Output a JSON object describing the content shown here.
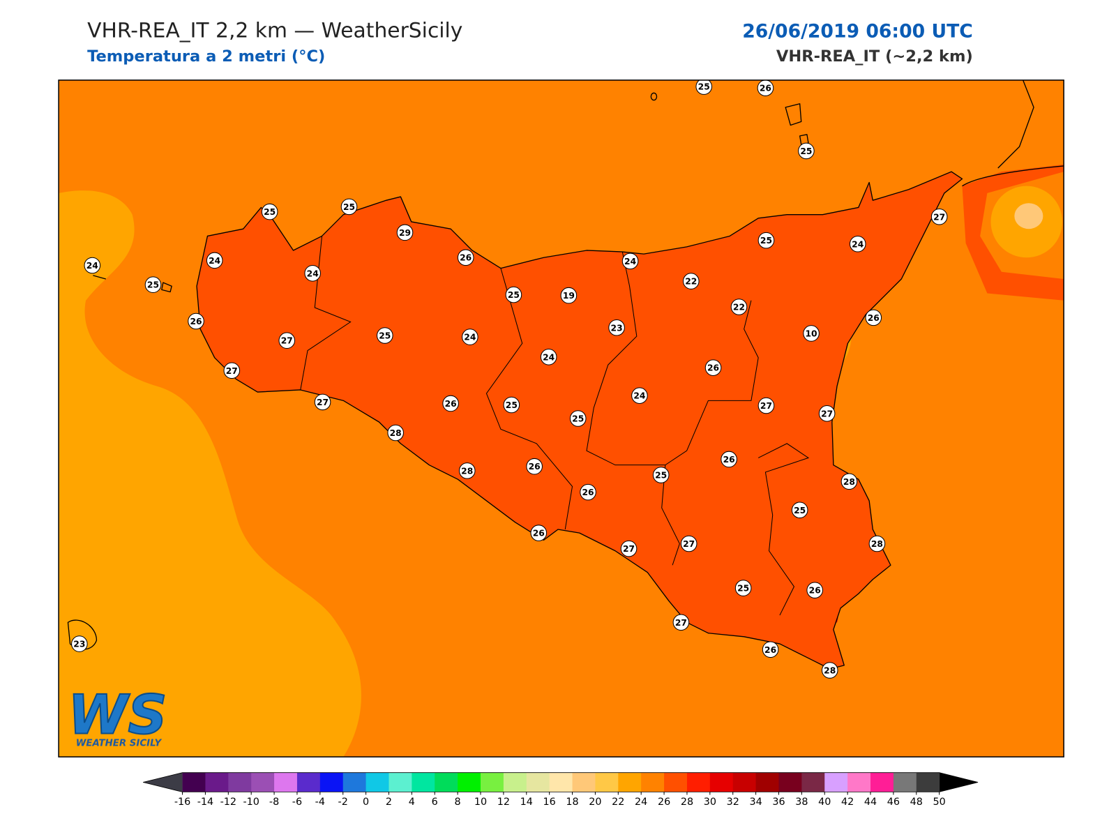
{
  "header": {
    "title": "VHR-REA_IT 2,2 km — WeatherSicily",
    "subtitle": "Temperatura a 2 metri (°C)",
    "datetime": "26/06/2019 06:00 UTC",
    "model": "VHR-REA_IT (~2,2 km)"
  },
  "map": {
    "stations": [
      25,
      26,
      25,
      25,
      25,
      29,
      26,
      24,
      25,
      24,
      24,
      24,
      25,
      24,
      27,
      25,
      19,
      22,
      22,
      10,
      26,
      26,
      27,
      25,
      24,
      23,
      24,
      26,
      27,
      27,
      26,
      25,
      25,
      24,
      27,
      27,
      28,
      26,
      28,
      26,
      26,
      25,
      28,
      25,
      26,
      27,
      27,
      28,
      25,
      26,
      27,
      26,
      28,
      23
    ],
    "colorbar": {
      "ticks": [
        -16,
        -14,
        -12,
        -10,
        -8,
        -6,
        -4,
        -2,
        0,
        2,
        4,
        6,
        8,
        10,
        12,
        14,
        16,
        18,
        20,
        22,
        24,
        26,
        28,
        30,
        32,
        34,
        36,
        38,
        40,
        42,
        44,
        46,
        48,
        50
      ],
      "colors": [
        "#430050",
        "#6a1a8a",
        "#7f3a9f",
        "#9b4fb4",
        "#dd77ee",
        "#5a2bcc",
        "#0a14f5",
        "#1e78dc",
        "#10c8e6",
        "#5cf0d0",
        "#00e6a0",
        "#00dc5a",
        "#00f000",
        "#78f040",
        "#c8f08c",
        "#e6e6a0",
        "#ffe6aa",
        "#ffc878",
        "#ffc846",
        "#ffa500",
        "#ff8200",
        "#ff5000",
        "#ff1e00",
        "#e60000",
        "#c80000",
        "#a00000",
        "#78001e",
        "#7a2846",
        "#d8a0ff",
        "#ff78c8",
        "#ff1e96",
        "#787878",
        "#3c3c3c"
      ],
      "under_color": "#3c3c46",
      "over_color": "#000000"
    }
  },
  "logo": {
    "initials": "WS",
    "text": "WEATHER SICILY"
  }
}
